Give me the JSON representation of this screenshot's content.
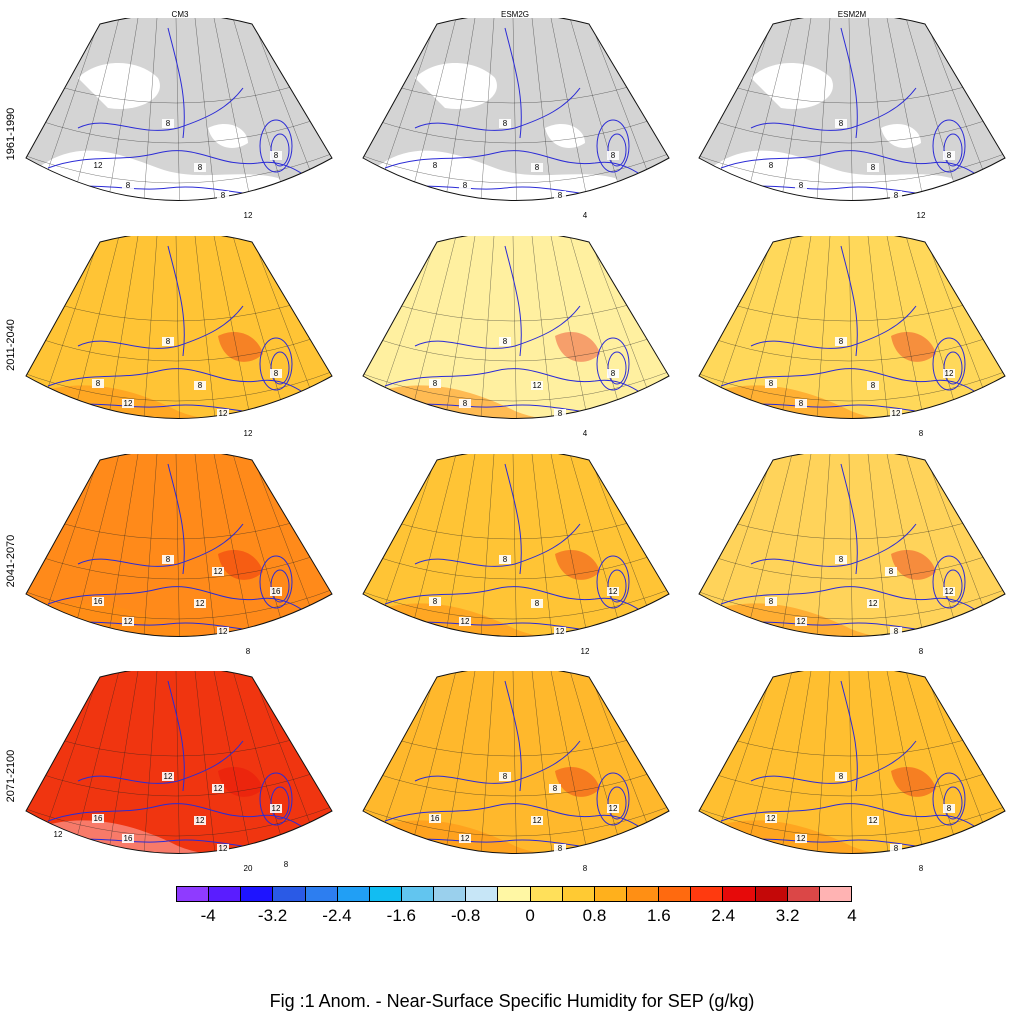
{
  "columns": [
    "CM3",
    "ESM2G",
    "ESM2M"
  ],
  "rows": [
    "1961-1990",
    "2011-2040",
    "2041-2070",
    "2071-2100"
  ],
  "colorbar": {
    "colors": [
      "#8f3bff",
      "#5a1dff",
      "#1e14ff",
      "#2a5ae6",
      "#2d7ef0",
      "#219ff5",
      "#12bdf2",
      "#62c5ef",
      "#9ad0ed",
      "#c7e6f7",
      "#fff7a4",
      "#ffe05a",
      "#ffca33",
      "#ffb01c",
      "#ff8f14",
      "#ff6a0f",
      "#ff3a0f",
      "#e60a0a",
      "#c40808",
      "#db4747",
      "#ffb3b3"
    ],
    "tick_labels": [
      "-4",
      "-3.2",
      "-2.4",
      "-1.6",
      "-0.8",
      "0",
      "0.8",
      "1.6",
      "2.4",
      "3.2",
      "4"
    ]
  },
  "panels": [
    {
      "row": 0,
      "col": 0,
      "fill": "#d4d4d4",
      "labels": [
        "8",
        "8",
        "8",
        "8",
        "8",
        "12",
        "12"
      ]
    },
    {
      "row": 0,
      "col": 1,
      "fill": "#d4d4d4",
      "labels": [
        "8",
        "8",
        "8",
        "8",
        "8",
        "8",
        "4"
      ]
    },
    {
      "row": 0,
      "col": 2,
      "fill": "#d4d4d4",
      "labels": [
        "8",
        "8",
        "8",
        "8",
        "8",
        "8",
        "12"
      ]
    },
    {
      "row": 1,
      "col": 0,
      "fill": "#ffc435",
      "labels": [
        "8",
        "12",
        "12",
        "8",
        "8",
        "8",
        "12"
      ]
    },
    {
      "row": 1,
      "col": 1,
      "fill": "#fff0a0",
      "labels": [
        "8",
        "8",
        "8",
        "12",
        "8",
        "8",
        "4"
      ]
    },
    {
      "row": 1,
      "col": 2,
      "fill": "#ffd85a",
      "labels": [
        "8",
        "12",
        "8",
        "8",
        "12",
        "8",
        "8"
      ]
    },
    {
      "row": 2,
      "col": 0,
      "fill": "#ff8a1a",
      "labels": [
        "8",
        "12",
        "12",
        "12",
        "16",
        "16",
        "8",
        "12"
      ]
    },
    {
      "row": 2,
      "col": 1,
      "fill": "#ffc435",
      "labels": [
        "8",
        "12",
        "12",
        "8",
        "12",
        "8",
        "12"
      ]
    },
    {
      "row": 2,
      "col": 2,
      "fill": "#ffd35a",
      "labels": [
        "8",
        "8",
        "12",
        "12",
        "12",
        "8",
        "8",
        "8"
      ]
    },
    {
      "row": 3,
      "col": 0,
      "fill": "#f03510",
      "labels": [
        "12",
        "12",
        "16",
        "12",
        "12",
        "16",
        "20",
        "12",
        "8",
        "12"
      ]
    },
    {
      "row": 3,
      "col": 1,
      "fill": "#ffb82c",
      "labels": [
        "8",
        "8",
        "12",
        "12",
        "12",
        "16",
        "8",
        "8"
      ]
    },
    {
      "row": 3,
      "col": 2,
      "fill": "#ffbf30",
      "labels": [
        "8",
        "8",
        "12",
        "12",
        "8",
        "12",
        "8"
      ]
    }
  ],
  "caption": "Fig :1  Anom.  - Near-Surface Specific Humidity for SEP (g/kg)"
}
